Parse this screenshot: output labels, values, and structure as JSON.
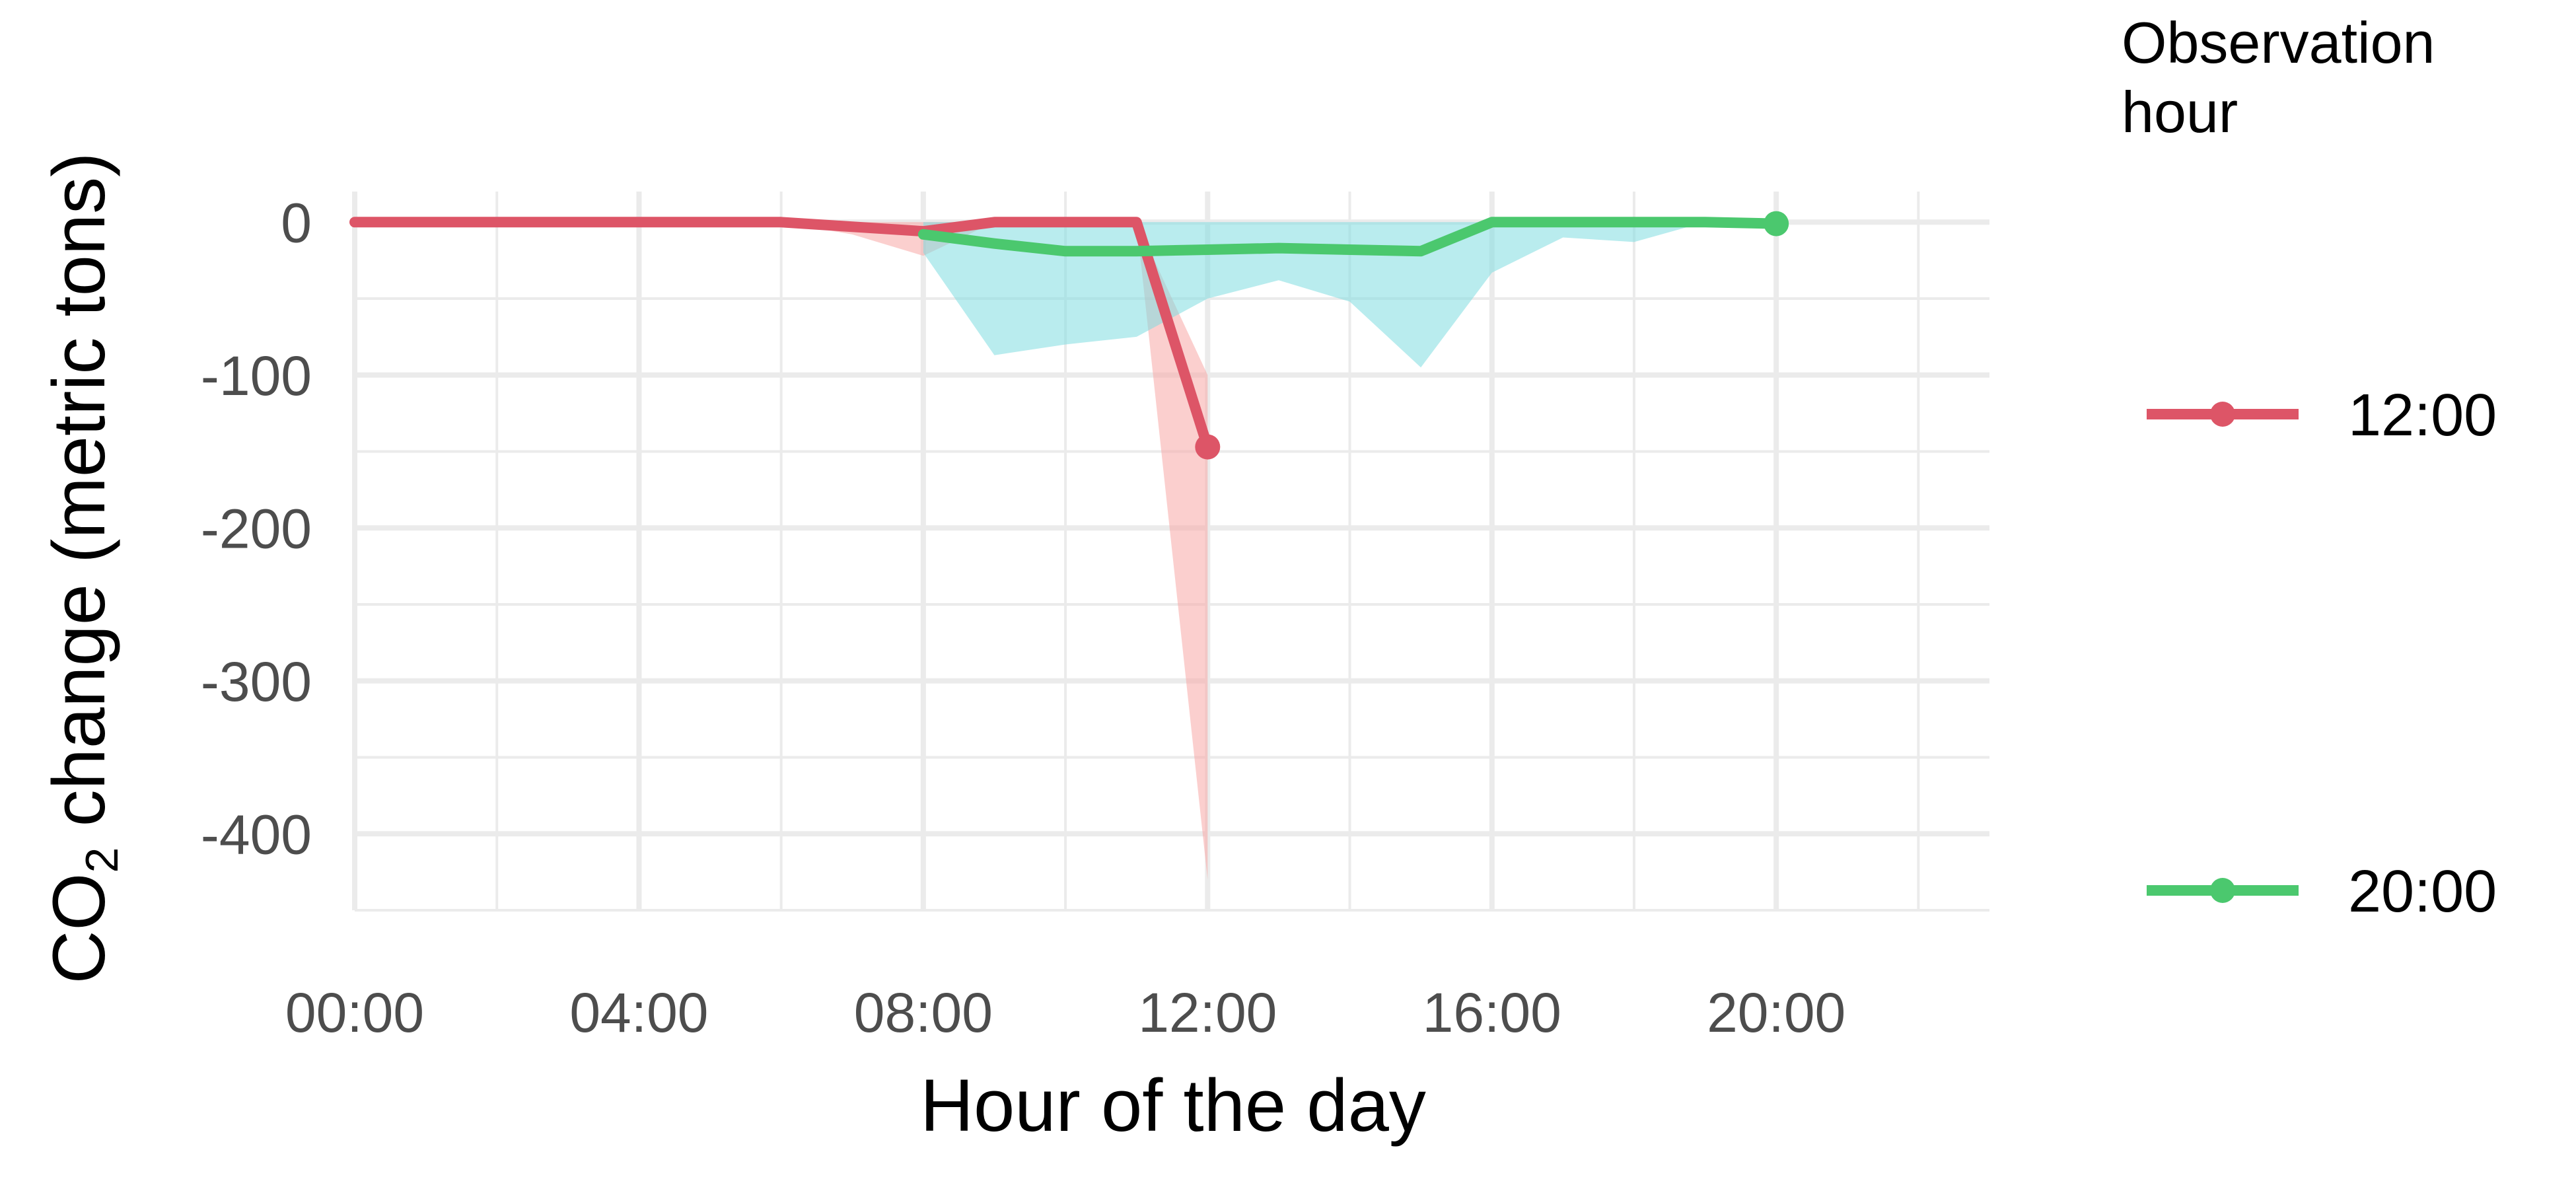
{
  "chart_data": {
    "type": "line",
    "xlabel": "Hour of the day",
    "ylabel_main": "CO",
    "ylabel_sub": "2",
    "ylabel_rest": " change (metric tons)",
    "x_tick_labels": [
      "00:00",
      "04:00",
      "08:00",
      "12:00",
      "16:00",
      "20:00"
    ],
    "x_ticks": [
      0,
      4,
      8,
      12,
      16,
      20
    ],
    "y_ticks": [
      0,
      -100,
      -200,
      -300,
      -400
    ],
    "y_tick_labels": [
      "0",
      "-100",
      "-200",
      "-300",
      "-400"
    ],
    "xlim": [
      0,
      23
    ],
    "ylim": [
      -450,
      20
    ],
    "grid": true,
    "legend": {
      "title_line1": "Observation",
      "title_line2": "hour",
      "placement": "right"
    },
    "series": [
      {
        "name": "12:00",
        "color": "#DD5567",
        "band_color": "#F8A8A6",
        "x": [
          0,
          1,
          2,
          3,
          4,
          5,
          6,
          7,
          8,
          9,
          10,
          11,
          12
        ],
        "values": [
          0,
          0,
          0,
          0,
          0,
          0,
          0,
          -3,
          -6,
          0,
          0,
          0,
          -147
        ],
        "lower": [
          0,
          0,
          0,
          0,
          0,
          0,
          0,
          -8,
          -22,
          0,
          0,
          0,
          -430
        ],
        "upper": [
          0,
          0,
          0,
          0,
          0,
          0,
          0,
          0,
          0,
          0,
          0,
          0,
          -100
        ]
      },
      {
        "name": "20:00",
        "color": "#4BC86E",
        "band_color": "#7FDDE0",
        "x": [
          8,
          9,
          10,
          11,
          12,
          13,
          14,
          15,
          16,
          17,
          18,
          19,
          20
        ],
        "values": [
          -8,
          -14,
          -19,
          -19,
          -18,
          -17,
          -18,
          -19,
          0,
          0,
          0,
          0,
          -1
        ],
        "lower": [
          -20,
          -87,
          -80,
          -75,
          -50,
          -38,
          -52,
          -95,
          -33,
          -10,
          -13,
          0,
          -2
        ],
        "upper": [
          0,
          0,
          0,
          0,
          0,
          0,
          0,
          0,
          0,
          0,
          0,
          0,
          0
        ]
      }
    ]
  }
}
